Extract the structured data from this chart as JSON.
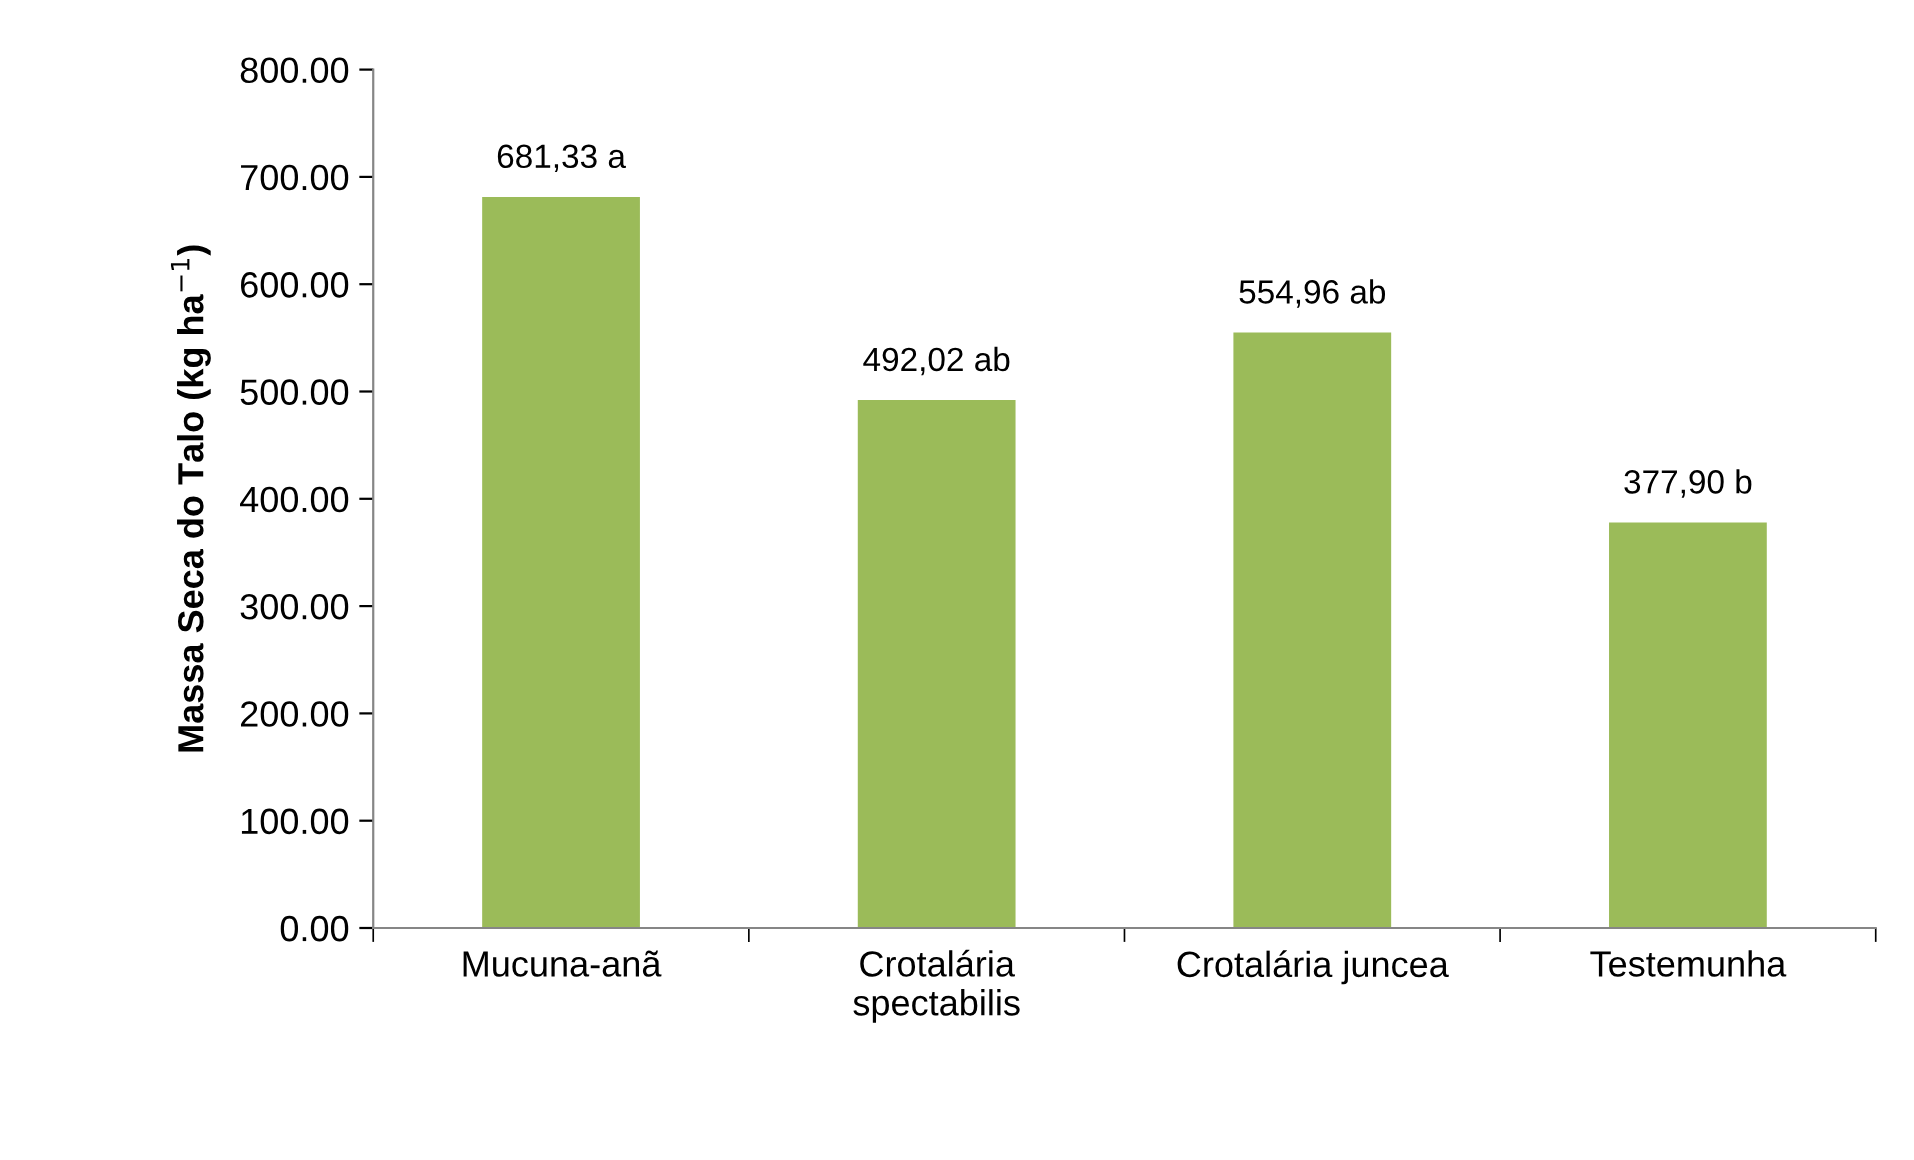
{
  "chart_data": {
    "type": "bar",
    "ylabel": "Massa Seca do Talo (kg ha$^{−1}$)",
    "categories": [
      "Mucuna-anã",
      "Crotalária\nspectabilis",
      "Crotalária juncea",
      "Testemunha"
    ],
    "values": [
      681.33,
      492.02,
      554.96,
      377.9
    ],
    "value_labels": [
      "681,33 a",
      "492,02 ab",
      "554,96 ab",
      "377,90 b"
    ],
    "color": "#9bbb59",
    "ylim": [
      0,
      800
    ],
    "yticks": [
      {
        "value": 0,
        "label": "0.00"
      },
      {
        "value": 100,
        "label": "100.00"
      },
      {
        "value": 200,
        "label": "200.00"
      },
      {
        "value": 300,
        "label": "300.00"
      },
      {
        "value": 400,
        "label": "400.00"
      },
      {
        "value": 500,
        "label": "500.00"
      },
      {
        "value": 600,
        "label": "600.00"
      },
      {
        "value": 700,
        "label": "700.00"
      },
      {
        "value": 800,
        "label": "800.00"
      }
    ],
    "grid": false,
    "legend": false
  }
}
